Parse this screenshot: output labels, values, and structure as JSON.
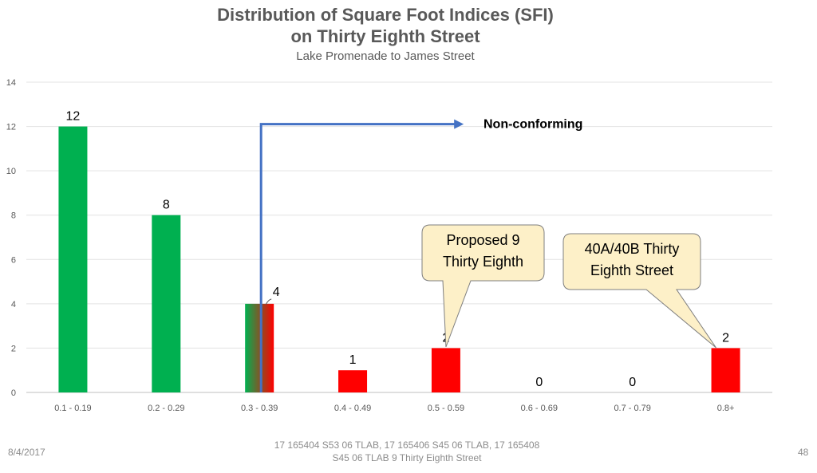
{
  "chart_data": {
    "type": "bar",
    "title": "Distribution of Square Foot Indices (SFI)",
    "title_line2": "on Thirty Eighth Street",
    "subtitle": "Lake Promenade to James Street",
    "categories": [
      "0.1 - 0.19",
      "0.2 - 0.29",
      "0.3 - 0.39",
      "0.4 - 0.49",
      "0.5 - 0.59",
      "0.6 - 0.69",
      "0.7 - 0.79",
      "0.8+"
    ],
    "values": [
      12,
      8,
      4,
      1,
      2,
      0,
      0,
      2
    ],
    "bar_colors": [
      "#00b050",
      "#00b050",
      "gradient",
      "#ff0000",
      "#ff0000",
      "#ff0000",
      "#ff0000",
      "#ff0000"
    ],
    "ylim": [
      0,
      14
    ],
    "yticks": [
      0,
      2,
      4,
      6,
      8,
      10,
      12,
      14
    ],
    "grid": true,
    "data_labels": true,
    "annotations": {
      "arrow_label": "Non-conforming",
      "callout1": [
        "Proposed 9",
        "Thirty Eighth"
      ],
      "callout2": [
        "40A/40B Thirty",
        "Eighth Street"
      ]
    }
  },
  "footer": {
    "date": "8/4/2017",
    "note_line1": "17 165404 S53 06 TLAB, 17 165406 S45 06 TLAB, 17 165408",
    "note_line2": "S45 06 TLAB   9 Thirty Eighth Street",
    "page": "48"
  },
  "colors": {
    "green": "#00b050",
    "red": "#ff0000",
    "arrow": "#4472c4",
    "callout_fill": "#fdf0c8",
    "callout_stroke": "#7f7f7f"
  }
}
